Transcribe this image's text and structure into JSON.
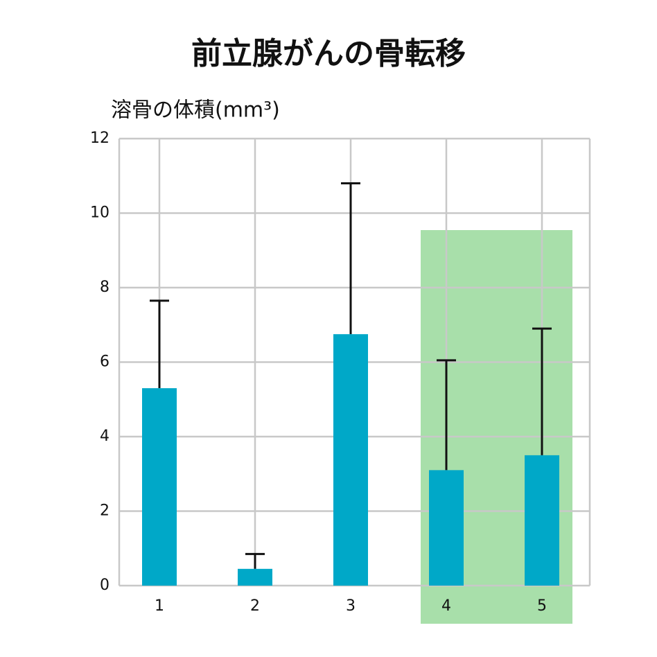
{
  "chart_data": {
    "type": "bar",
    "title": "前立腺がんの骨転移",
    "y_label": "溶骨の体積(mm³)",
    "categories": [
      "1",
      "2",
      "3",
      "4",
      "5"
    ],
    "values": [
      5.3,
      0.45,
      6.75,
      3.1,
      3.5
    ],
    "errors": [
      2.35,
      0.4,
      4.05,
      2.95,
      3.4
    ],
    "color": "#00a8c8",
    "error_color": "#111111",
    "ylim": [
      0,
      12
    ],
    "yticks": [
      0,
      2,
      4,
      6,
      8,
      10,
      12
    ],
    "grid": true
  }
}
